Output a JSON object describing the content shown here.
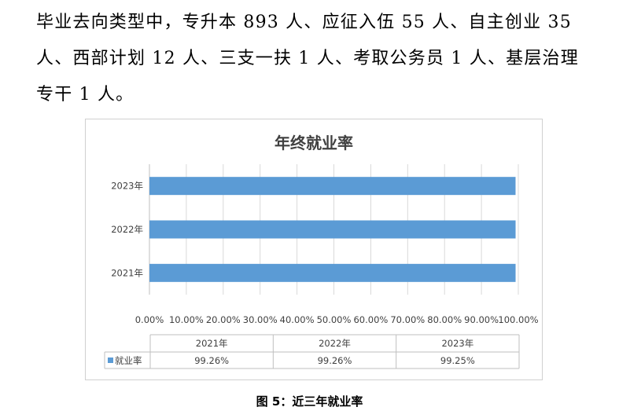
{
  "paragraph": {
    "line1": "毕业去向类型中，专升本 893 人、应征入伍 55 人、自主创业 35",
    "line2": "人、西部计划 12 人、三支一扶 1 人、考取公务员 1 人、基层治理",
    "line3": "专干 1 人。"
  },
  "caption": "图 5：近三年就业率",
  "colors": {
    "bar": "#5b9bd5",
    "grid": "#d9d9d9",
    "axis_text": "#404040"
  },
  "chart_data": {
    "type": "bar",
    "orientation": "horizontal",
    "title": "年终就业率",
    "categories": [
      "2021年",
      "2022年",
      "2023年"
    ],
    "series": [
      {
        "name": "就业率",
        "values": [
          99.26,
          99.26,
          99.25
        ]
      }
    ],
    "xlim": [
      0,
      100
    ],
    "x_tick_labels": [
      "0.00%",
      "10.00%",
      "20.00%",
      "30.00%",
      "40.00%",
      "50.00%",
      "60.00%",
      "70.00%",
      "80.00%",
      "90.00%",
      "100.00%"
    ],
    "grid": true,
    "data_table": {
      "headers": [
        "2021年",
        "2022年",
        "2023年"
      ],
      "row_label": "就业率",
      "values": [
        "99.26%",
        "99.26%",
        "99.25%"
      ]
    }
  }
}
